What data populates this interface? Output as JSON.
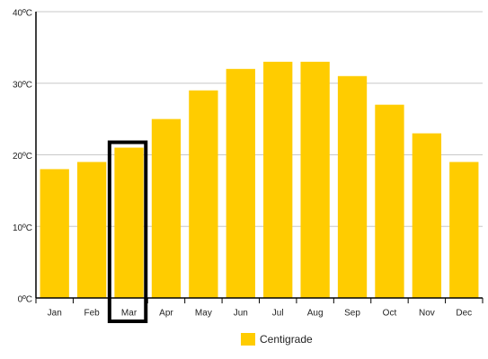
{
  "chart_data": {
    "type": "bar",
    "categories": [
      "Jan",
      "Feb",
      "Mar",
      "Apr",
      "May",
      "Jun",
      "Jul",
      "Aug",
      "Sep",
      "Oct",
      "Nov",
      "Dec"
    ],
    "series": [
      {
        "name": "Centigrade",
        "color": "#ffcc00",
        "values": [
          18,
          19,
          21,
          25,
          29,
          32,
          33,
          33,
          31,
          27,
          23,
          19
        ]
      }
    ],
    "ylim": [
      0,
      40
    ],
    "yticks": [
      {
        "value": 0,
        "label": "0ºC"
      },
      {
        "value": 10,
        "label": "10ºC"
      },
      {
        "value": 20,
        "label": "20ºC"
      },
      {
        "value": 30,
        "label": "30ºC"
      },
      {
        "value": 40,
        "label": "40ºC"
      }
    ],
    "grid": true,
    "legend": "bottom",
    "highlight": "Mar"
  }
}
